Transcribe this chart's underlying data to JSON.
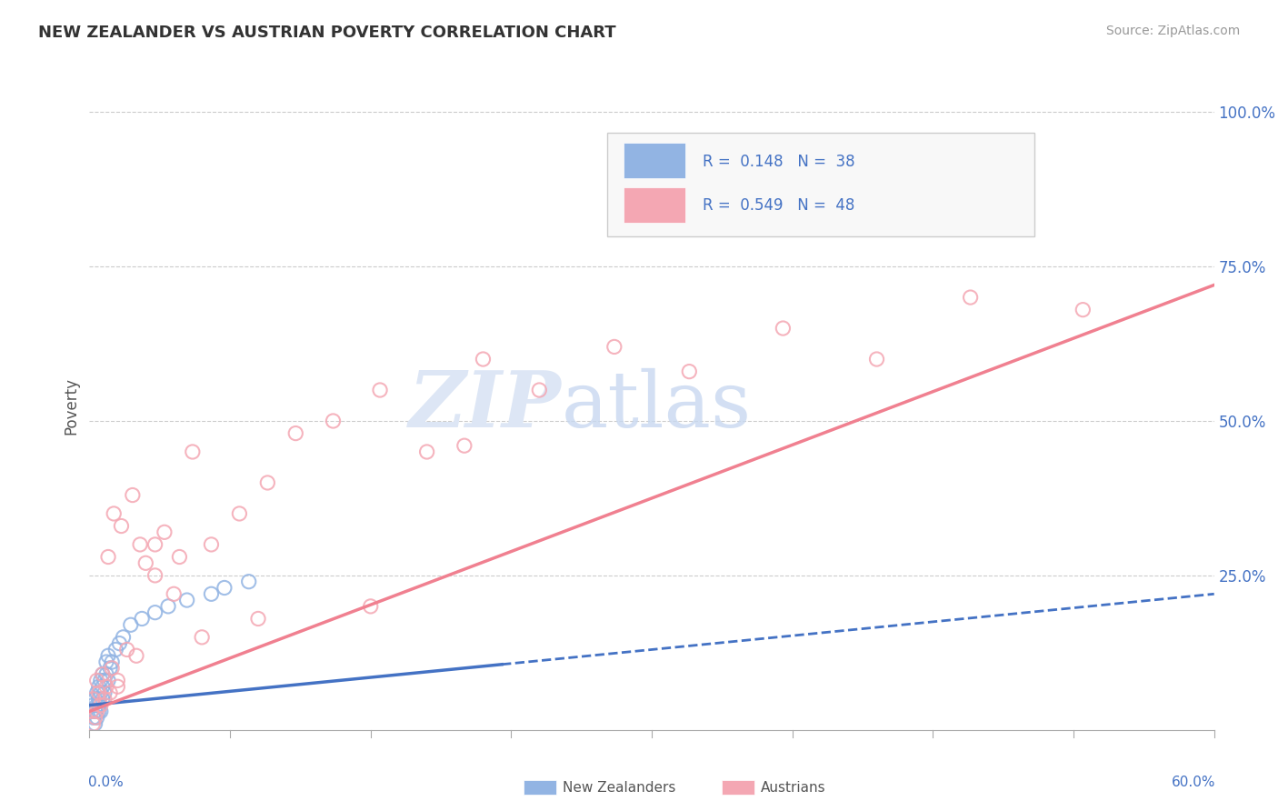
{
  "title": "NEW ZEALANDER VS AUSTRIAN POVERTY CORRELATION CHART",
  "source": "Source: ZipAtlas.com",
  "ylabel": "Poverty",
  "nz_R": 0.148,
  "nz_N": 38,
  "aus_R": 0.549,
  "aus_N": 48,
  "nz_color": "#92b4e3",
  "aus_color": "#f4a7b3",
  "nz_line_color": "#4472c4",
  "aus_line_color": "#f08090",
  "background_color": "#ffffff",
  "nz_x": [
    0.001,
    0.002,
    0.002,
    0.003,
    0.003,
    0.003,
    0.004,
    0.004,
    0.004,
    0.005,
    0.005,
    0.005,
    0.005,
    0.006,
    0.006,
    0.006,
    0.007,
    0.007,
    0.007,
    0.008,
    0.008,
    0.009,
    0.009,
    0.01,
    0.01,
    0.011,
    0.012,
    0.014,
    0.016,
    0.018,
    0.022,
    0.028,
    0.035,
    0.042,
    0.052,
    0.065,
    0.072,
    0.085
  ],
  "nz_y": [
    0.03,
    0.02,
    0.04,
    0.01,
    0.03,
    0.05,
    0.04,
    0.06,
    0.02,
    0.05,
    0.03,
    0.07,
    0.04,
    0.06,
    0.08,
    0.03,
    0.07,
    0.09,
    0.05,
    0.08,
    0.06,
    0.09,
    0.11,
    0.08,
    0.12,
    0.1,
    0.11,
    0.13,
    0.14,
    0.15,
    0.17,
    0.18,
    0.19,
    0.2,
    0.21,
    0.22,
    0.23,
    0.24
  ],
  "aus_x": [
    0.001,
    0.002,
    0.002,
    0.003,
    0.004,
    0.004,
    0.005,
    0.006,
    0.007,
    0.008,
    0.009,
    0.01,
    0.011,
    0.012,
    0.013,
    0.015,
    0.017,
    0.02,
    0.023,
    0.027,
    0.03,
    0.035,
    0.04,
    0.048,
    0.055,
    0.065,
    0.08,
    0.095,
    0.11,
    0.13,
    0.155,
    0.18,
    0.21,
    0.24,
    0.28,
    0.32,
    0.37,
    0.42,
    0.47,
    0.53,
    0.2,
    0.15,
    0.09,
    0.06,
    0.045,
    0.035,
    0.025,
    0.015
  ],
  "aus_y": [
    0.03,
    0.01,
    0.05,
    0.02,
    0.08,
    0.03,
    0.06,
    0.04,
    0.09,
    0.05,
    0.07,
    0.28,
    0.06,
    0.1,
    0.35,
    0.08,
    0.33,
    0.13,
    0.38,
    0.3,
    0.27,
    0.25,
    0.32,
    0.28,
    0.45,
    0.3,
    0.35,
    0.4,
    0.48,
    0.5,
    0.55,
    0.45,
    0.6,
    0.55,
    0.62,
    0.58,
    0.65,
    0.6,
    0.7,
    0.68,
    0.46,
    0.2,
    0.18,
    0.15,
    0.22,
    0.3,
    0.12,
    0.07
  ],
  "xlim": [
    0.0,
    0.6
  ],
  "ylim": [
    0.0,
    1.05
  ],
  "yticks": [
    0.0,
    0.25,
    0.5,
    0.75,
    1.0
  ],
  "ytick_labels": [
    "",
    "25.0%",
    "50.0%",
    "75.0%",
    "100.0%"
  ],
  "nz_trend_x": [
    0.0,
    0.6
  ],
  "nz_trend_y": [
    0.04,
    0.22
  ],
  "aus_trend_x": [
    0.0,
    0.6
  ],
  "aus_trend_y": [
    0.03,
    0.72
  ]
}
